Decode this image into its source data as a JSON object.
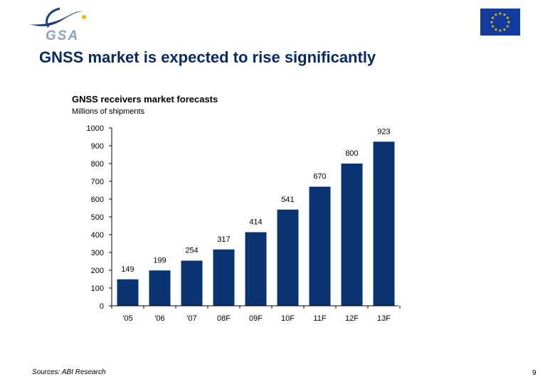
{
  "slide": {
    "title": "GNSS market is expected to rise significantly",
    "logo_text": "GSA",
    "source": "Sources: ABI Research",
    "page_number": "9"
  },
  "colors": {
    "title": "#062a63",
    "bar": "#0a3471",
    "logo": "#1e3f7a",
    "logo_accent": "#f2b705",
    "eu_blue": "#153a9e",
    "eu_star": "#ffd400"
  },
  "chart_data": {
    "type": "bar",
    "title": "GNSS receivers market forecasts",
    "subtitle": "Millions of shipments",
    "xlabel": "",
    "ylabel": "",
    "categories": [
      "'05",
      "'06",
      "'07",
      "08F",
      "09F",
      "10F",
      "11F",
      "12F",
      "13F"
    ],
    "values": [
      149,
      199,
      254,
      317,
      414,
      541,
      670,
      800,
      923
    ],
    "data_labels": [
      "149",
      "199",
      "254",
      "317",
      "414",
      "541",
      "670",
      "800",
      "923"
    ],
    "ylim": [
      0,
      1000
    ],
    "yticks": [
      0,
      100,
      200,
      300,
      400,
      500,
      600,
      700,
      800,
      900,
      1000
    ],
    "grid": false,
    "legend": "none"
  }
}
